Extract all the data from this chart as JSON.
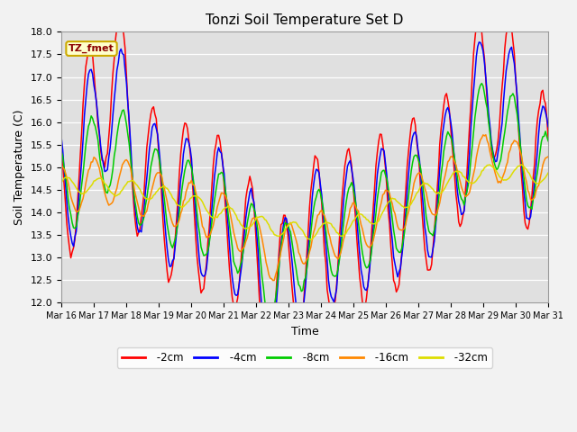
{
  "title": "Tonzi Soil Temperature Set D",
  "xlabel": "Time",
  "ylabel": "Soil Temperature (C)",
  "ylim": [
    12.0,
    18.0
  ],
  "yticks": [
    12.0,
    12.5,
    13.0,
    13.5,
    14.0,
    14.5,
    15.0,
    15.5,
    16.0,
    16.5,
    17.0,
    17.5,
    18.0
  ],
  "legend_label": "TZ_fmet",
  "legend_box_color": "#ffffcc",
  "legend_box_edge": "#ccaa00",
  "series_colors": {
    "-2cm": "#ff0000",
    "-4cm": "#0000ff",
    "-8cm": "#00cc00",
    "-16cm": "#ff8800",
    "-32cm": "#dddd00"
  },
  "x_tick_labels": [
    "Mar 16",
    "Mar 17",
    "Mar 18",
    "Mar 19",
    "Mar 20",
    "Mar 21",
    "Mar 22",
    "Mar 23",
    "Mar 24",
    "Mar 25",
    "Mar 26",
    "Mar 27",
    "Mar 28",
    "Mar 29",
    "Mar 30",
    "Mar 31"
  ],
  "figsize": [
    6.4,
    4.8
  ],
  "dpi": 100
}
